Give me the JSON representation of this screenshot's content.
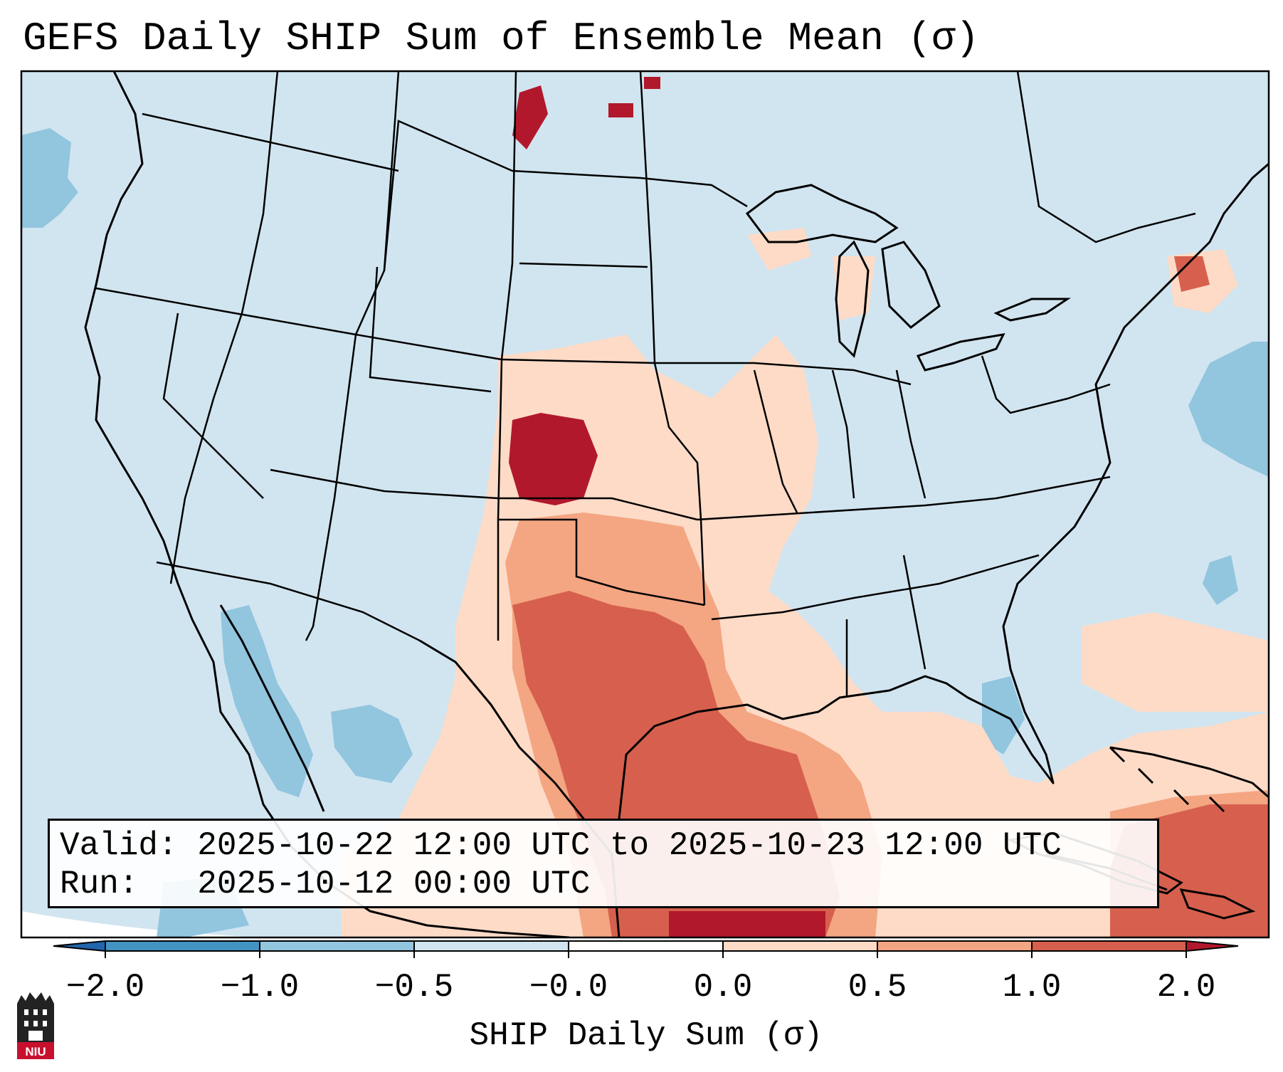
{
  "title": "GEFS Daily SHIP Sum of Ensemble Mean (σ)",
  "info": {
    "valid_label": "Valid:",
    "valid_value": "2025-10-22 12:00 UTC to 2025-10-23 12:00 UTC",
    "run_label": "Run:",
    "run_value": "2025-10-12 00:00 UTC"
  },
  "colorbar": {
    "label": "SHIP Daily Sum (σ)",
    "ticks": [
      "−2.0",
      "−1.0",
      "−0.5",
      "−0.0",
      "0.0",
      "0.5",
      "1.0",
      "2.0"
    ],
    "colors": {
      "below_min": "#2166ac",
      "bin_m2_m1": "#4393c3",
      "bin_m1_m05": "#92c5de",
      "bin_m05_m0": "#d1e5f0",
      "bin_0_05": "#fddbc7",
      "bin_05_1": "#f4a582",
      "bin_1_2": "#d6604d",
      "above_max": "#b2182b"
    }
  },
  "logo": {
    "text": "NIU"
  },
  "colors": {
    "ocean": "#d1e5f0",
    "line": "#000000"
  }
}
